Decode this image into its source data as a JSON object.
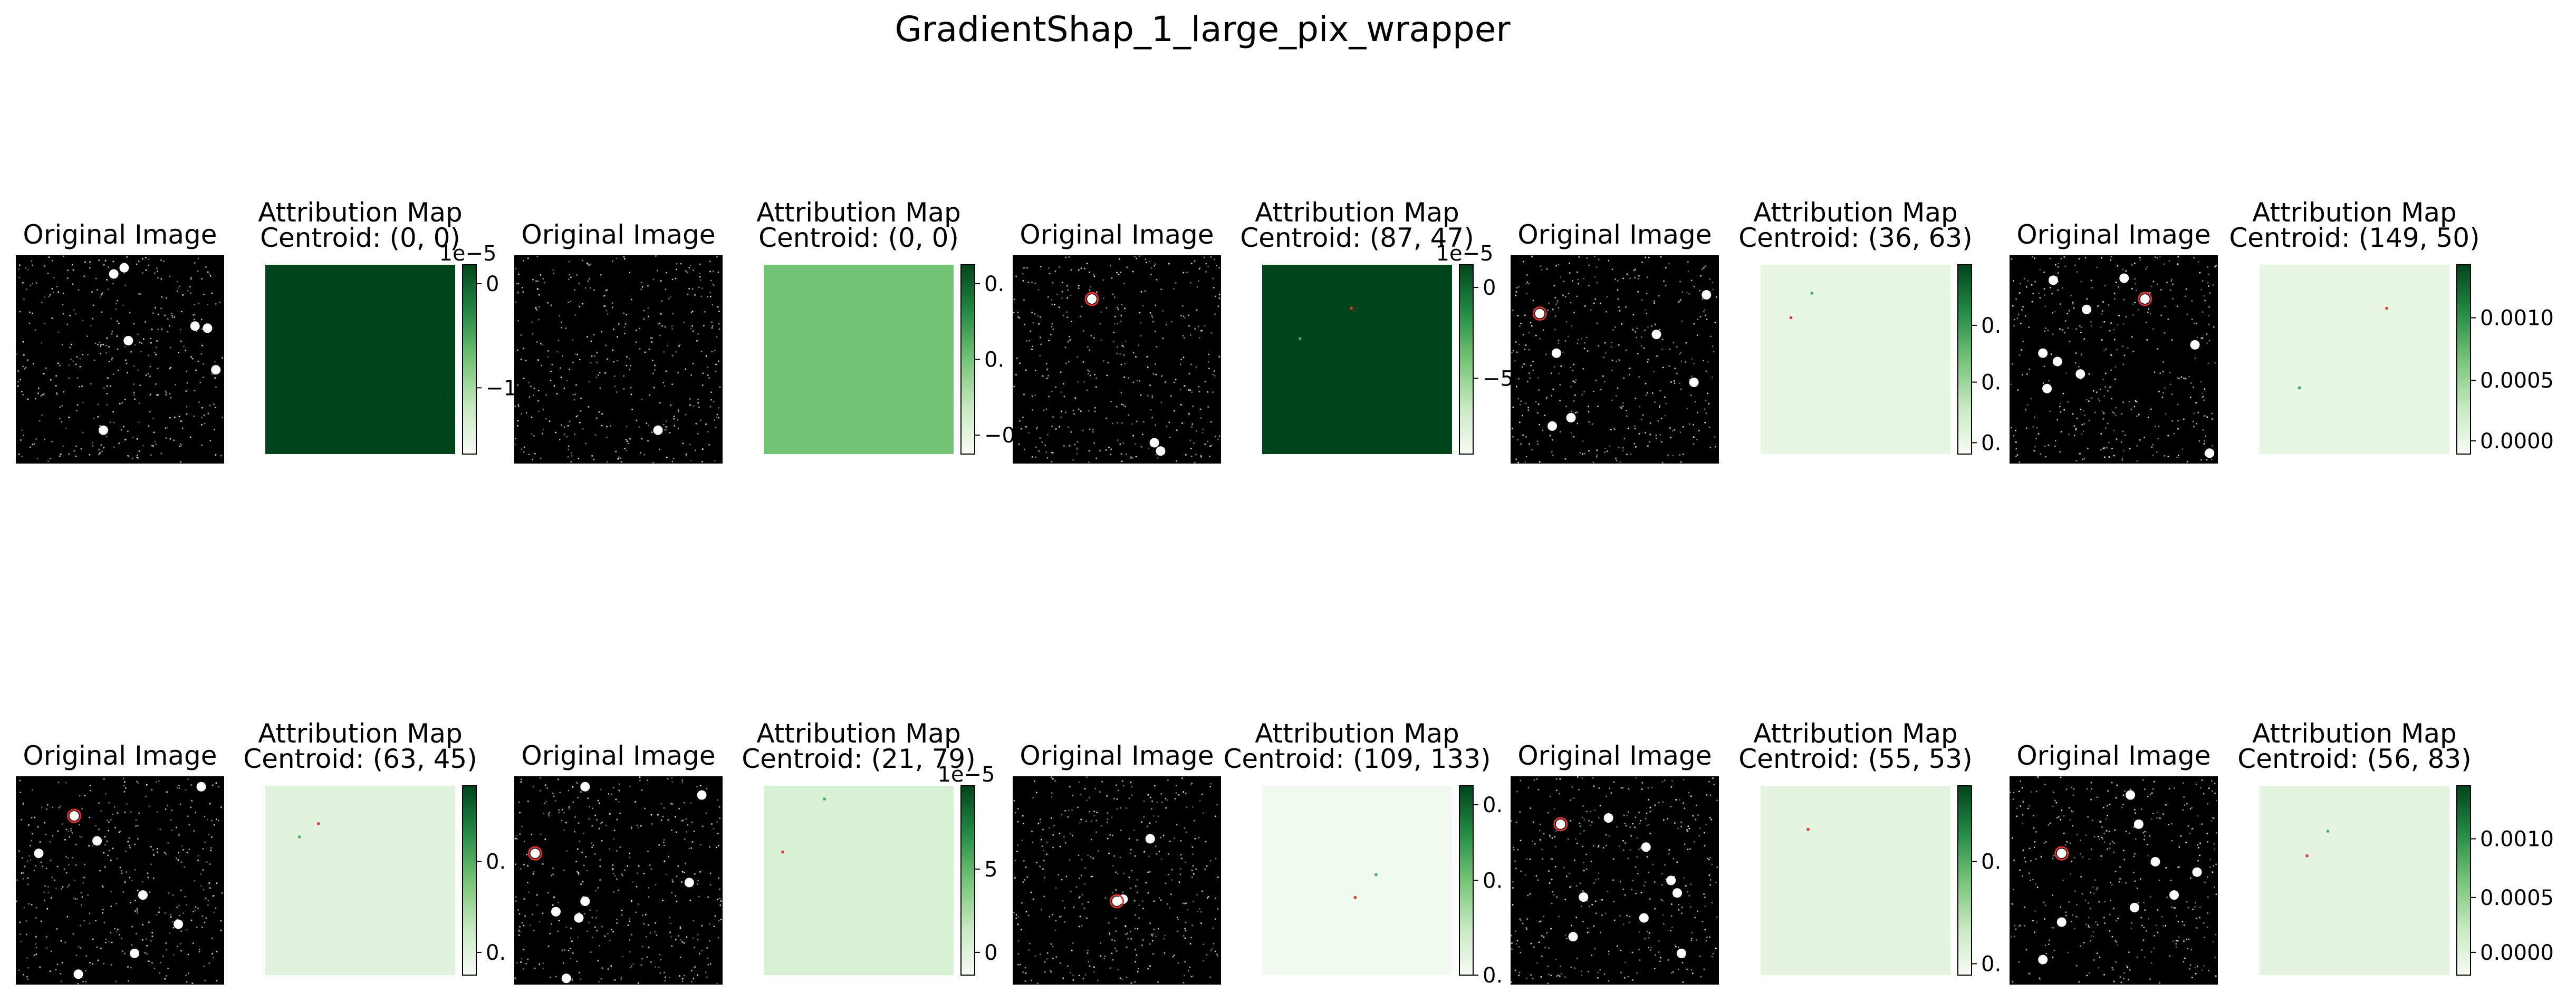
{
  "figure": {
    "suptitle": "GradientShap_1_large_pix_wrapper"
  },
  "colors": {
    "background": "#000000",
    "star": "#ffffff",
    "centroid_marker": "#e8332a",
    "greens_low": "#f7fcf5",
    "greens_high": "#00441b"
  },
  "chart_data": [
    {
      "type": "image",
      "row": 0,
      "col": 0,
      "title": "Original Image",
      "stars": [
        [
          0.47,
          0.09
        ],
        [
          0.52,
          0.06
        ],
        [
          0.54,
          0.41
        ],
        [
          0.86,
          0.34
        ],
        [
          0.92,
          0.35
        ],
        [
          0.96,
          0.55
        ],
        [
          0.42,
          0.84
        ]
      ]
    },
    {
      "type": "heatmap",
      "row": 0,
      "col": 1,
      "title": "Attribution Map",
      "subtitle": "Centroid: (0, 0)",
      "fill_level": 1.0,
      "colorbar_ticks": [
        "0",
        "−1"
      ],
      "colorbar_tick_levels": [
        0.9,
        0.35
      ],
      "offset_label": "1e−5",
      "marks": []
    },
    {
      "type": "image",
      "row": 0,
      "col": 2,
      "title": "Original Image",
      "stars": [
        [
          0.69,
          0.84
        ]
      ]
    },
    {
      "type": "heatmap",
      "row": 0,
      "col": 3,
      "title": "Attribution Map",
      "subtitle": "Centroid: (0, 0)",
      "fill_level": 0.5,
      "colorbar_ticks": [
        "0.",
        "0.",
        "−0."
      ],
      "colorbar_tick_levels": [
        0.9,
        0.5,
        0.1
      ],
      "offset_label": "",
      "marks": []
    },
    {
      "type": "image",
      "row": 0,
      "col": 4,
      "title": "Original Image",
      "stars": [
        [
          0.38,
          0.21
        ],
        [
          0.68,
          0.9
        ],
        [
          0.71,
          0.94
        ]
      ],
      "centroid": [
        0.38,
        0.21
      ]
    },
    {
      "type": "heatmap",
      "row": 0,
      "col": 5,
      "title": "Attribution Map",
      "subtitle": "Centroid: (87, 47)",
      "fill_level": 1.0,
      "colorbar_ticks": [
        "0",
        "−5"
      ],
      "colorbar_tick_levels": [
        0.88,
        0.4
      ],
      "offset_label": "1e−5",
      "marks": [
        [
          0.47,
          0.23,
          "red"
        ],
        [
          0.2,
          0.39,
          "green"
        ]
      ]
    },
    {
      "type": "image",
      "row": 0,
      "col": 6,
      "title": "Original Image",
      "stars": [
        [
          0.14,
          0.28
        ],
        [
          0.7,
          0.38
        ],
        [
          0.94,
          0.19
        ],
        [
          0.29,
          0.78
        ],
        [
          0.88,
          0.61
        ],
        [
          0.22,
          0.47
        ],
        [
          0.2,
          0.82
        ]
      ],
      "centroid": [
        0.14,
        0.28
      ]
    },
    {
      "type": "heatmap",
      "row": 0,
      "col": 7,
      "title": "Attribution Map",
      "subtitle": "Centroid: (36, 63)",
      "fill_level": 0.08,
      "colorbar_ticks": [
        "0.",
        "0.",
        "0."
      ],
      "colorbar_tick_levels": [
        0.68,
        0.38,
        0.06
      ],
      "offset_label": "",
      "marks": [
        [
          0.16,
          0.28,
          "red"
        ],
        [
          0.27,
          0.15,
          "green"
        ]
      ]
    },
    {
      "type": "image",
      "row": 0,
      "col": 8,
      "title": "Original Image",
      "stars": [
        [
          0.21,
          0.12
        ],
        [
          0.37,
          0.26
        ],
        [
          0.65,
          0.21
        ],
        [
          0.89,
          0.43
        ],
        [
          0.16,
          0.47
        ],
        [
          0.23,
          0.51
        ],
        [
          0.34,
          0.57
        ],
        [
          0.18,
          0.64
        ],
        [
          0.96,
          0.95
        ],
        [
          0.55,
          0.11
        ]
      ],
      "centroid": [
        0.65,
        0.21
      ]
    },
    {
      "type": "heatmap",
      "row": 0,
      "col": 9,
      "title": "Attribution Map",
      "subtitle": "Centroid: (149, 50)",
      "fill_level": 0.08,
      "colorbar_ticks": [
        "0.0010",
        "0.0005",
        "0.0000"
      ],
      "colorbar_tick_levels": [
        0.72,
        0.39,
        0.07
      ],
      "offset_label": "",
      "marks": [
        [
          0.67,
          0.23,
          "red"
        ],
        [
          0.21,
          0.65,
          "green"
        ]
      ]
    },
    {
      "type": "image",
      "row": 1,
      "col": 0,
      "title": "Original Image",
      "stars": [
        [
          0.28,
          0.19
        ],
        [
          0.39,
          0.31
        ],
        [
          0.11,
          0.37
        ],
        [
          0.78,
          0.71
        ],
        [
          0.61,
          0.57
        ],
        [
          0.57,
          0.85
        ],
        [
          0.89,
          0.05
        ],
        [
          0.3,
          0.95
        ]
      ],
      "centroid": [
        0.28,
        0.19
      ]
    },
    {
      "type": "heatmap",
      "row": 1,
      "col": 1,
      "title": "Attribution Map",
      "subtitle": "Centroid: (63, 45)",
      "fill_level": 0.12,
      "colorbar_ticks": [
        "0.",
        "0."
      ],
      "colorbar_tick_levels": [
        0.6,
        0.12
      ],
      "offset_label": "",
      "marks": [
        [
          0.28,
          0.2,
          "red"
        ],
        [
          0.18,
          0.27,
          "green"
        ]
      ]
    },
    {
      "type": "image",
      "row": 1,
      "col": 2,
      "title": "Original Image",
      "stars": [
        [
          0.1,
          0.37
        ],
        [
          0.34,
          0.6
        ],
        [
          0.2,
          0.65
        ],
        [
          0.31,
          0.68
        ],
        [
          0.84,
          0.51
        ],
        [
          0.9,
          0.09
        ],
        [
          0.34,
          0.05
        ],
        [
          0.25,
          0.97
        ]
      ],
      "centroid": [
        0.1,
        0.37
      ]
    },
    {
      "type": "heatmap",
      "row": 1,
      "col": 3,
      "title": "Attribution Map",
      "subtitle": "Centroid: (21, 79)",
      "fill_level": 0.16,
      "colorbar_ticks": [
        "5",
        "0"
      ],
      "colorbar_tick_levels": [
        0.56,
        0.12
      ],
      "offset_label": "1e−5",
      "marks": [
        [
          0.1,
          0.35,
          "red"
        ],
        [
          0.32,
          0.07,
          "green"
        ]
      ]
    },
    {
      "type": "image",
      "row": 1,
      "col": 4,
      "title": "Original Image",
      "stars": [
        [
          0.5,
          0.6
        ],
        [
          0.53,
          0.59
        ],
        [
          0.66,
          0.3
        ]
      ],
      "centroid": [
        0.5,
        0.6
      ]
    },
    {
      "type": "heatmap",
      "row": 1,
      "col": 5,
      "title": "Attribution Map",
      "subtitle": "Centroid: (109, 133)",
      "fill_level": 0.03,
      "colorbar_ticks": [
        "0.",
        "0.",
        "0."
      ],
      "colorbar_tick_levels": [
        0.9,
        0.5,
        0.0
      ],
      "offset_label": "",
      "marks": [
        [
          0.49,
          0.59,
          "red"
        ],
        [
          0.6,
          0.47,
          "green"
        ]
      ]
    },
    {
      "type": "image",
      "row": 1,
      "col": 6,
      "title": "Original Image",
      "stars": [
        [
          0.24,
          0.23
        ],
        [
          0.47,
          0.2
        ],
        [
          0.65,
          0.34
        ],
        [
          0.64,
          0.68
        ],
        [
          0.77,
          0.5
        ],
        [
          0.8,
          0.56
        ],
        [
          0.35,
          0.58
        ],
        [
          0.82,
          0.85
        ],
        [
          0.3,
          0.77
        ]
      ],
      "centroid": [
        0.24,
        0.23
      ]
    },
    {
      "type": "heatmap",
      "row": 1,
      "col": 7,
      "title": "Attribution Map",
      "subtitle": "Centroid: (55, 53)",
      "fill_level": 0.1,
      "colorbar_ticks": [
        "0.",
        "0."
      ],
      "colorbar_tick_levels": [
        0.6,
        0.06
      ],
      "offset_label": "",
      "marks": [
        [
          0.25,
          0.23,
          "red"
        ]
      ]
    },
    {
      "type": "image",
      "row": 1,
      "col": 8,
      "title": "Original Image",
      "stars": [
        [
          0.25,
          0.37
        ],
        [
          0.62,
          0.23
        ],
        [
          0.9,
          0.46
        ],
        [
          0.7,
          0.41
        ],
        [
          0.79,
          0.57
        ],
        [
          0.6,
          0.63
        ],
        [
          0.25,
          0.7
        ],
        [
          0.16,
          0.88
        ],
        [
          0.58,
          0.09
        ]
      ],
      "centroid": [
        0.25,
        0.37
      ]
    },
    {
      "type": "heatmap",
      "row": 1,
      "col": 9,
      "title": "Attribution Map",
      "subtitle": "Centroid: (56, 83)",
      "fill_level": 0.1,
      "colorbar_ticks": [
        "0.0010",
        "0.0005",
        "0.0000"
      ],
      "colorbar_tick_levels": [
        0.72,
        0.41,
        0.12
      ],
      "offset_label": "",
      "marks": [
        [
          0.25,
          0.37,
          "red"
        ],
        [
          0.36,
          0.24,
          "green"
        ]
      ]
    }
  ]
}
